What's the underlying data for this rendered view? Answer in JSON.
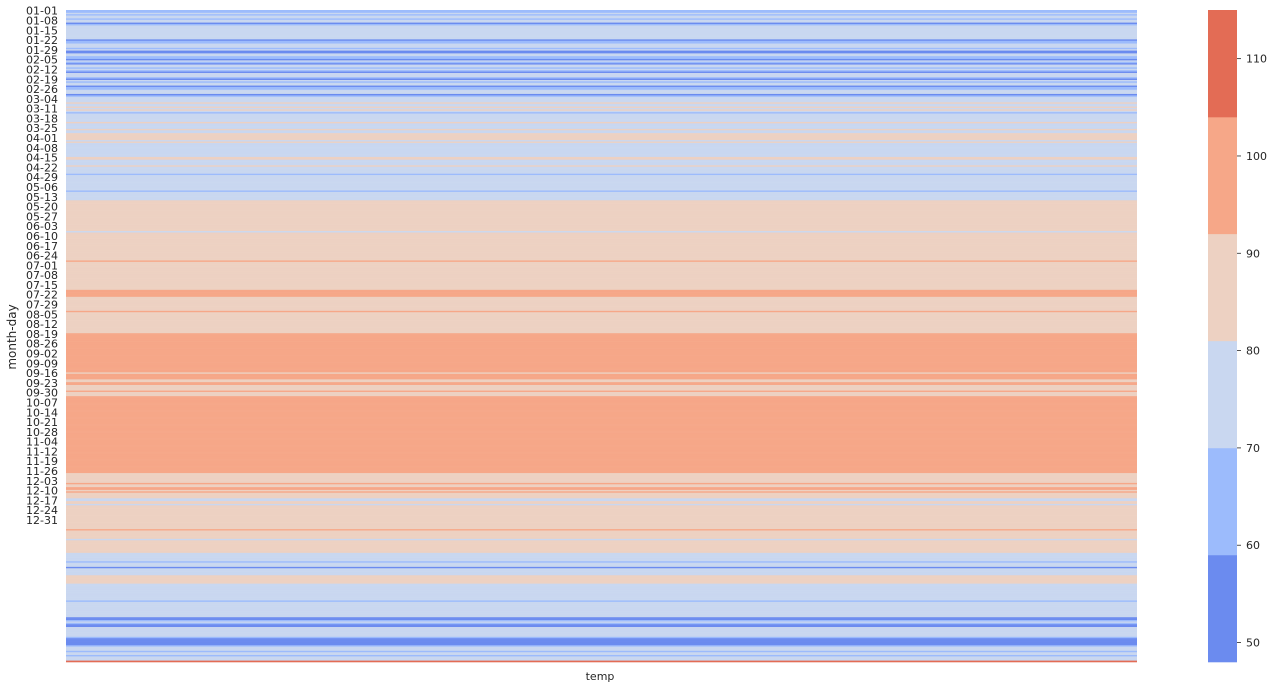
{
  "chart_data": {
    "type": "heatmap",
    "xlabel": "temp",
    "ylabel": "month-day",
    "x_categories": [
      "temp"
    ],
    "y_tick_labels": [
      "01-01",
      "01-08",
      "01-15",
      "01-22",
      "01-29",
      "02-05",
      "02-12",
      "02-19",
      "02-26",
      "03-04",
      "03-11",
      "03-18",
      "03-25",
      "04-01",
      "04-08",
      "04-15",
      "04-22",
      "04-29",
      "05-06",
      "05-13",
      "05-20",
      "05-27",
      "06-03",
      "06-10",
      "06-17",
      "06-24",
      "07-01",
      "07-08",
      "07-15",
      "07-22",
      "07-29",
      "08-05",
      "08-12",
      "08-19",
      "08-26",
      "09-02",
      "09-09",
      "09-16",
      "09-23",
      "09-30",
      "10-07",
      "10-14",
      "10-21",
      "10-28",
      "11-04",
      "11-12",
      "11-19",
      "11-26",
      "12-03",
      "12-10",
      "12-17",
      "12-24",
      "12-31"
    ],
    "colorbar": {
      "range": [
        48,
        115
      ],
      "ticks": [
        50,
        60,
        70,
        80,
        90,
        100,
        110
      ],
      "bins": [
        {
          "from": 48,
          "to": 59,
          "color": "#6b8bef"
        },
        {
          "from": 59,
          "to": 70,
          "color": "#9cbbfc"
        },
        {
          "from": 70,
          "to": 81,
          "color": "#c9d7f0"
        },
        {
          "from": 81,
          "to": 92,
          "color": "#edd1c2"
        },
        {
          "from": 92,
          "to": 104,
          "color": "#f6a788"
        },
        {
          "from": 104,
          "to": 115,
          "color": "#e36c55"
        }
      ]
    },
    "values": [
      [
        65,
        65,
        75,
        65,
        75,
        75,
        65,
        75,
        75,
        55,
        65,
        75,
        75,
        75,
        75,
        75,
        75,
        75,
        75,
        75,
        75,
        55,
        65,
        65,
        75,
        75,
        75,
        65,
        75,
        55,
        55,
        75,
        75,
        65,
        65,
        55,
        75,
        65,
        55,
        75,
        75,
        65,
        75,
        65,
        55,
        75,
        75,
        75,
        65,
        55,
        75,
        65,
        75,
        75,
        55,
        65,
        65,
        75,
        75,
        75,
        55,
        65,
        75,
        75,
        75,
        75,
        85,
        75,
        75,
        85,
        75,
        85,
        75,
        65,
        75,
        75,
        75,
        75,
        75,
        75,
        85,
        75,
        75,
        75,
        75,
        85,
        75,
        75,
        85,
        85,
        85,
        85,
        85,
        75,
        85,
        75,
        75,
        75,
        75,
        75,
        75,
        75,
        75,
        75,
        75,
        85,
        85,
        75,
        75,
        75,
        75,
        85,
        75,
        75,
        75,
        75,
        75,
        65,
        75,
        75,
        75,
        75,
        75,
        75,
        75,
        75,
        75,
        75,
        75,
        65,
        75,
        75,
        75,
        75,
        75,
        75,
        85,
        85,
        85,
        85,
        85,
        85,
        85,
        85,
        85,
        85,
        85,
        85,
        85,
        85,
        85,
        85,
        85,
        85,
        85,
        85,
        85,
        85,
        75,
        85,
        85,
        85,
        85,
        85,
        85,
        85,
        85,
        85,
        85,
        85,
        85,
        85,
        85,
        85,
        85,
        85,
        85,
        85,
        85,
        97,
        85,
        85,
        85,
        85,
        85,
        85,
        85,
        85,
        85,
        85,
        85,
        85,
        85,
        85,
        85,
        85,
        85,
        85,
        85,
        85,
        97,
        97,
        97,
        97,
        97,
        85,
        85,
        85,
        85,
        85,
        85,
        85,
        85,
        85,
        85,
        97,
        85,
        85,
        85,
        85,
        85,
        85,
        85,
        85,
        85,
        85,
        85,
        85,
        85,
        85,
        85,
        97,
        97,
        97,
        97,
        97,
        97,
        97,
        97,
        97,
        97,
        97,
        97,
        97,
        97,
        97,
        97,
        97,
        97,
        97,
        97,
        97,
        97,
        97,
        97,
        97,
        97,
        97,
        97,
        85,
        97,
        97,
        97,
        97,
        85,
        85,
        97,
        97,
        85,
        85,
        85,
        85,
        97,
        85,
        85,
        85,
        97,
        97,
        97,
        97,
        97,
        97,
        97,
        97,
        97,
        97,
        97,
        97,
        97,
        97,
        97,
        97,
        97,
        97,
        97,
        97,
        97,
        97,
        97,
        97,
        97,
        97,
        97,
        97,
        97,
        97,
        97,
        97,
        97,
        97,
        97,
        97,
        97,
        97,
        97,
        97,
        97,
        97,
        97,
        97,
        97,
        97,
        97,
        97,
        97,
        97,
        97,
        97,
        97,
        97,
        97,
        85,
        85,
        85,
        85,
        85,
        85,
        85,
        97,
        85,
        85,
        97,
        97,
        85,
        97,
        85,
        85,
        85,
        85,
        75,
        75,
        85,
        85,
        75,
        85,
        85,
        85,
        85,
        85,
        85,
        85,
        85,
        85,
        85,
        85,
        85,
        85,
        85,
        85,
        85,
        85,
        97,
        85,
        85,
        85,
        85,
        85,
        85,
        75,
        85,
        85,
        85,
        85,
        85,
        85,
        85,
        85,
        85,
        75,
        75,
        75,
        75,
        75,
        75,
        65,
        75,
        75,
        75,
        55,
        75,
        75,
        75,
        75,
        75,
        85,
        85,
        85,
        85,
        85,
        85,
        75,
        75,
        75,
        75,
        75,
        75,
        75,
        75,
        75,
        75,
        75,
        75,
        65,
        75,
        75,
        75,
        75,
        75,
        75,
        75,
        75,
        75,
        75,
        75,
        55,
        55,
        65,
        75,
        65,
        55,
        55,
        75,
        75,
        75,
        75,
        75,
        75,
        75,
        65,
        55,
        55,
        55,
        55,
        55,
        65,
        75,
        75,
        75,
        65,
        75,
        75,
        65,
        75,
        75,
        75,
        110
      ]
    ]
  }
}
